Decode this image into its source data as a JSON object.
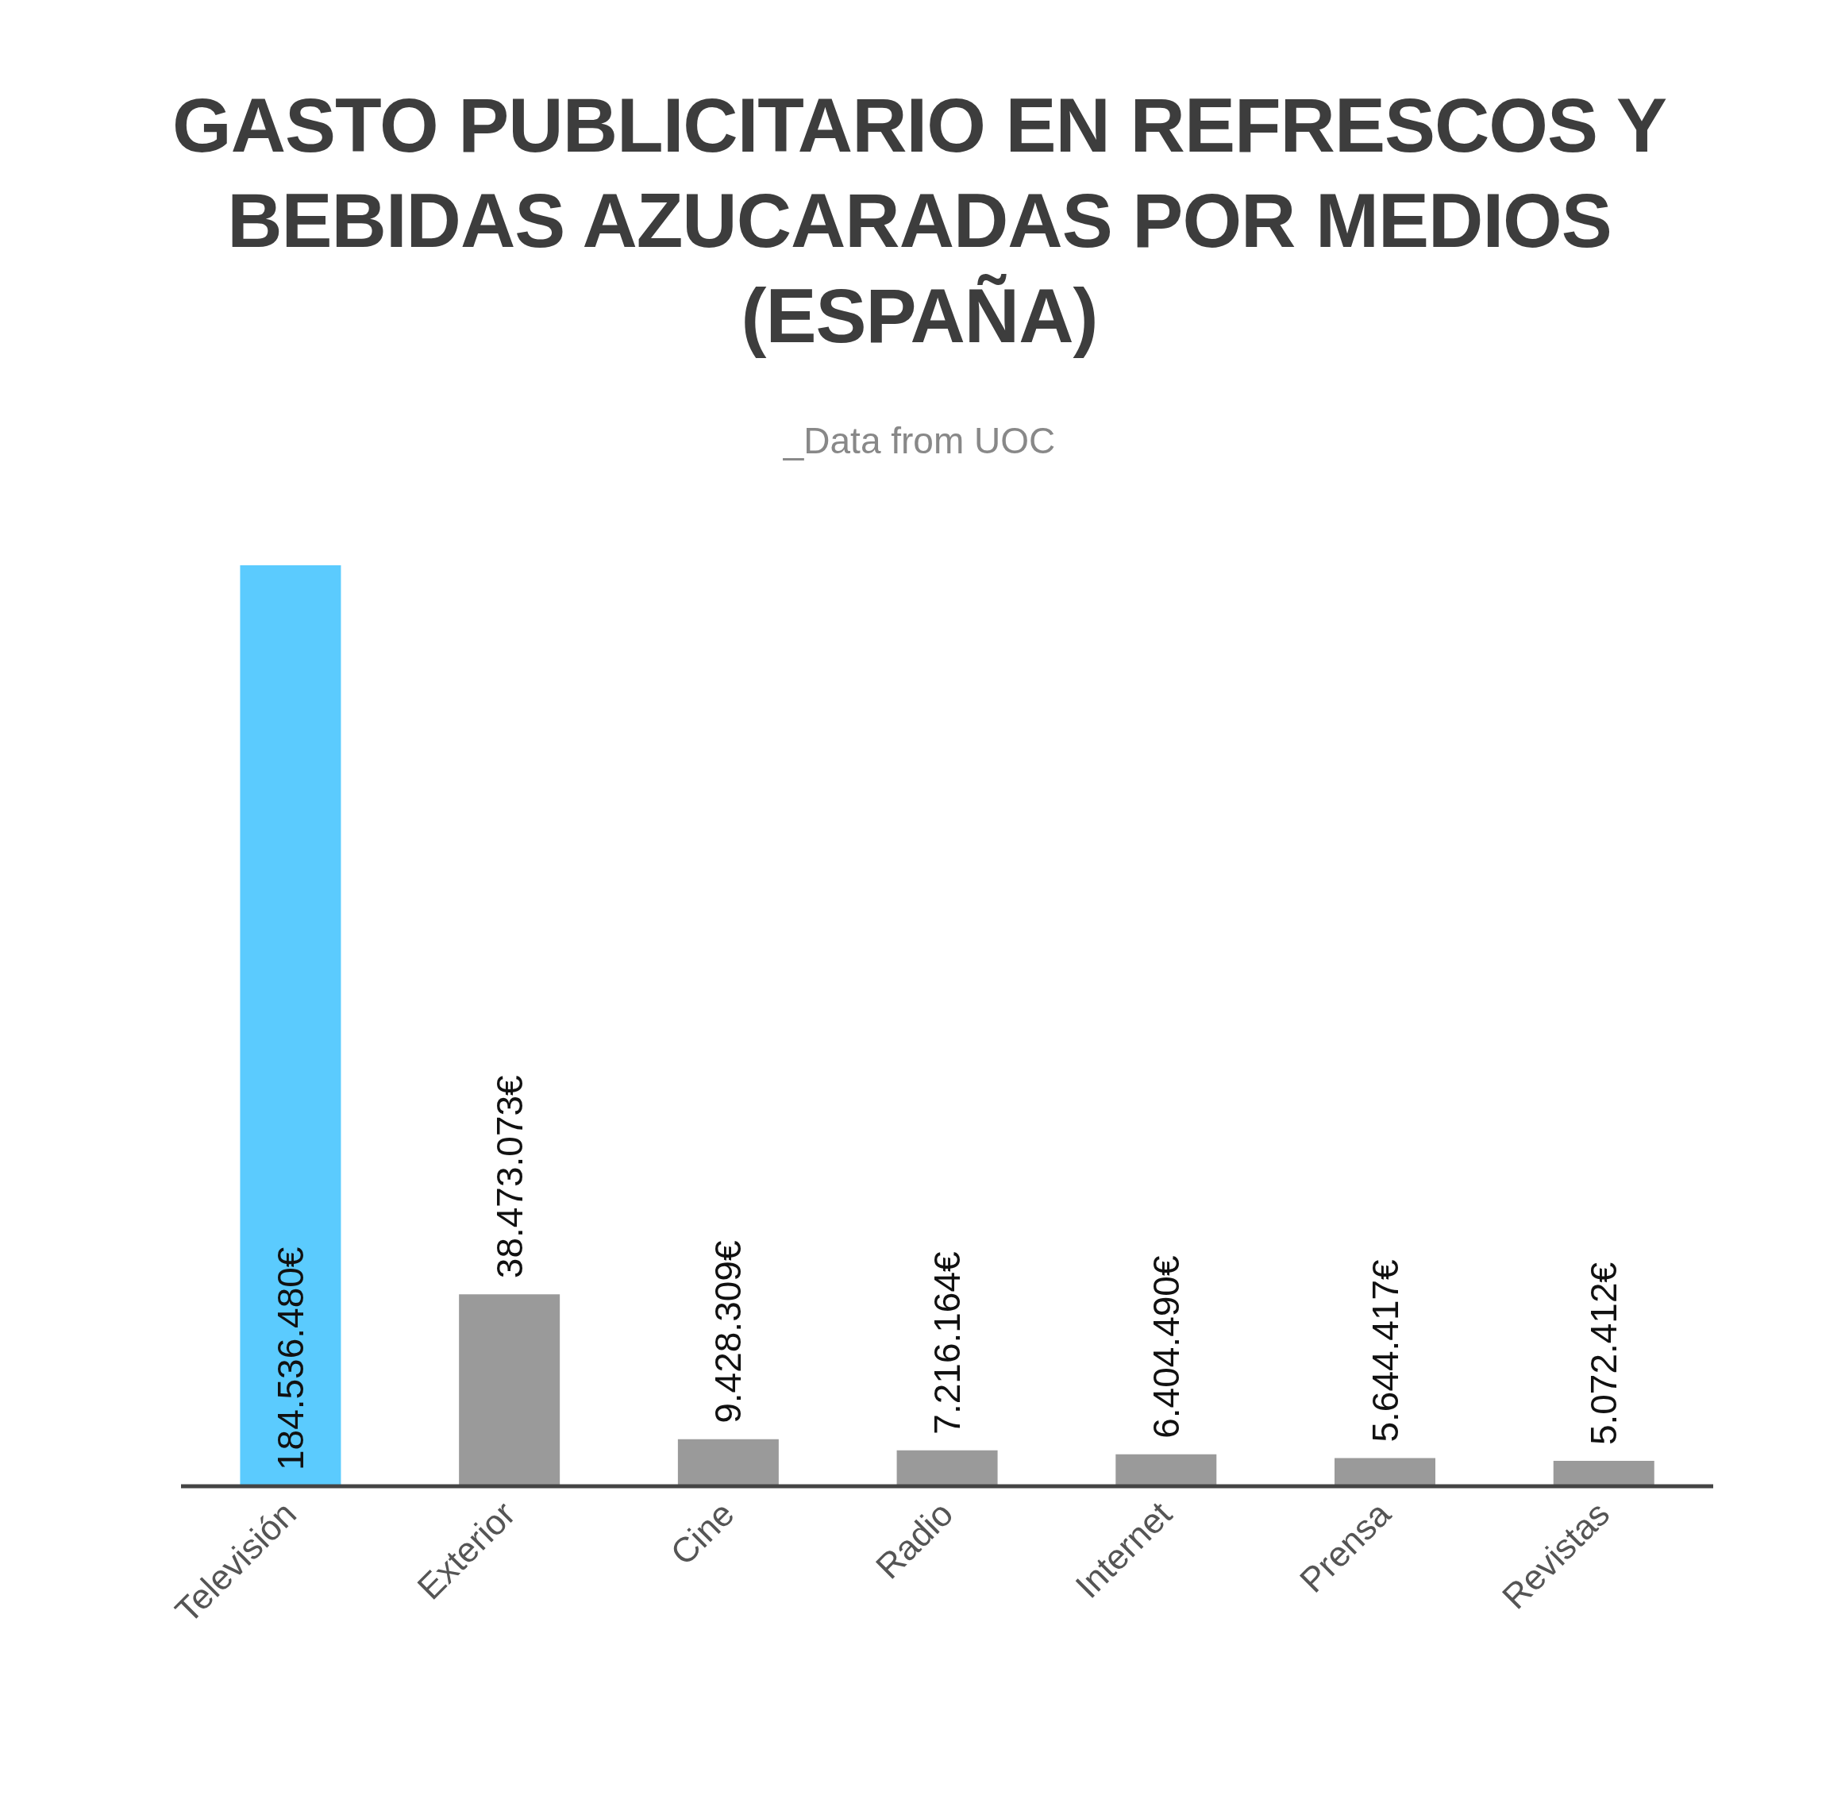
{
  "chart_data": {
    "type": "bar",
    "title": "GASTO PUBLICITARIO EN REFRESCOS Y BEBIDAS AZUCARADAS POR MEDIOS (ESPAÑA)",
    "subtitle": "_Data from UOC",
    "categories": [
      "Televisión",
      "Exterior",
      "Cine",
      "Radio",
      "Internet",
      "Prensa",
      "Revistas"
    ],
    "values": [
      184536480,
      38473073,
      9428309,
      7216164,
      6404490,
      5644417,
      5072412
    ],
    "colors": [
      "#5bcbfe",
      "#9a9a9a",
      "#9a9a9a",
      "#9a9a9a",
      "#9a9a9a",
      "#9a9a9a",
      "#9a9a9a"
    ],
    "value_labels": [
      "184.536.480€",
      "38.473.073€",
      "9.428.309€",
      "7.216.164€",
      "6.404.490€",
      "5.644.417€",
      "5.072.412€"
    ],
    "grid": false,
    "legend": false
  }
}
